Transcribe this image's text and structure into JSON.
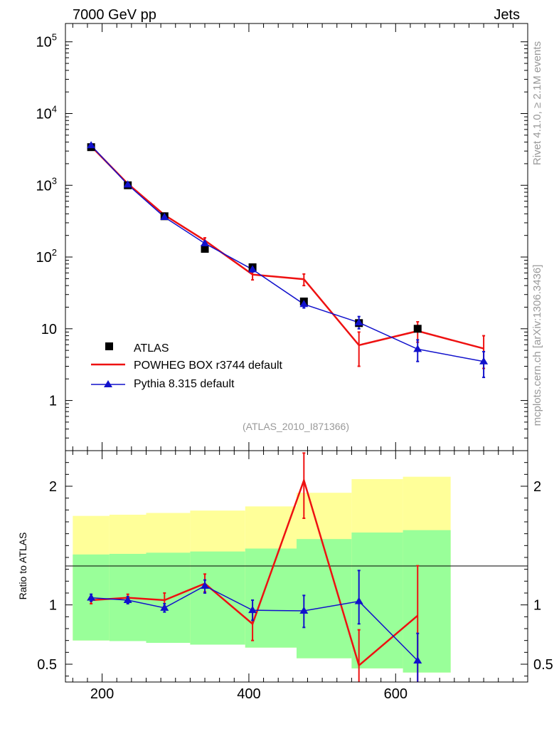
{
  "header": {
    "left": "7000 GeV pp",
    "right": "Jets"
  },
  "side_labels": {
    "rivet": "Rivet 4.1.0, ≥ 2.1M events",
    "source": "mcplots.cern.ch [arXiv:1306.3436]"
  },
  "analysis_tag": "(ATLAS_2010_I871366)",
  "legend": [
    {
      "label": "ATLAS",
      "marker": "square",
      "color": "#000000"
    },
    {
      "label": "POWHEG BOX r3744 default",
      "marker": "line",
      "color": "#ee1111"
    },
    {
      "label": "Pythia 8.315 default",
      "marker": "triangle",
      "color": "#1111cc"
    }
  ],
  "chart_data": [
    {
      "name": "main",
      "type": "line",
      "yscale": "log",
      "xlim": [
        150,
        780
      ],
      "ylim": [
        0.2,
        180000
      ],
      "xlabel": "",
      "ylabel": "",
      "y_tick_labels": [
        {
          "value": 1,
          "text": "1"
        },
        {
          "value": 10,
          "text": "10"
        },
        {
          "value": 100,
          "base": "10",
          "exp": "2"
        },
        {
          "value": 1000,
          "base": "10",
          "exp": "3"
        },
        {
          "value": 10000,
          "base": "10",
          "exp": "4"
        },
        {
          "value": 100000,
          "base": "10",
          "exp": "5"
        }
      ],
      "series": [
        {
          "name": "ATLAS",
          "style": "points",
          "color": "#000000",
          "x": [
            185,
            235,
            285,
            340,
            405,
            475,
            550,
            630
          ],
          "y": [
            3400,
            1000,
            370,
            130,
            72,
            24,
            12,
            10
          ]
        },
        {
          "name": "POWHEG BOX r3744 default",
          "style": "line",
          "color": "#ee1111",
          "x": [
            185,
            235,
            285,
            340,
            405,
            475,
            550,
            630,
            720
          ],
          "y": [
            3500,
            1050,
            385,
            170,
            57,
            49,
            5.9,
            9.3,
            5.3
          ],
          "err_lo": [
            3300,
            1000,
            360,
            150,
            48,
            40,
            3.0,
            6.5,
            2.8
          ],
          "err_hi": [
            3700,
            1100,
            410,
            185,
            66,
            58,
            9.0,
            12.5,
            8.0
          ]
        },
        {
          "name": "Pythia 8.315 default",
          "style": "line",
          "color": "#1111cc",
          "x": [
            185,
            235,
            285,
            340,
            405,
            475,
            550,
            630,
            720
          ],
          "y": [
            3600,
            1020,
            360,
            155,
            67,
            22,
            12.2,
            5.2,
            3.5
          ],
          "err_lo": [
            3500,
            990,
            345,
            145,
            62,
            19.5,
            10.0,
            3.5,
            2.1
          ],
          "err_hi": [
            3700,
            1050,
            375,
            165,
            72,
            25,
            14.8,
            7.0,
            4.8
          ]
        }
      ]
    },
    {
      "name": "ratio",
      "type": "line",
      "xlim": [
        150,
        780
      ],
      "ylim": [
        0.35,
        2.3
      ],
      "xlabel": "",
      "ylabel": "Ratio to ATLAS",
      "x_tick_labels": [
        200,
        400,
        600
      ],
      "y_tick_labels": [
        0.5,
        1,
        2
      ],
      "bands": {
        "edges": [
          160,
          210,
          260,
          320,
          395,
          465,
          540,
          610,
          675
        ],
        "yellow_lo": [
          0.7,
          0.695,
          0.68,
          0.665,
          0.64,
          0.55,
          0.465,
          0.43
        ],
        "yellow_hi": [
          1.75,
          1.76,
          1.775,
          1.795,
          1.83,
          1.945,
          2.06,
          2.08
        ],
        "green_lo": [
          0.7,
          0.695,
          0.68,
          0.665,
          0.64,
          0.55,
          0.465,
          0.43
        ],
        "green_hi": [
          1.425,
          1.43,
          1.44,
          1.45,
          1.475,
          1.555,
          1.61,
          1.63
        ],
        "yellow": "#ffff99",
        "green": "#99ff99"
      },
      "series": [
        {
          "name": "POWHEG BOX r3744 default",
          "color": "#ee1111",
          "x": [
            185,
            235,
            285,
            340,
            405,
            475,
            550,
            630
          ],
          "y": [
            1.04,
            1.06,
            1.04,
            1.18,
            0.84,
            2.05,
            0.49,
            0.91
          ],
          "err_lo": [
            1.01,
            1.03,
            0.99,
            1.11,
            0.7,
            1.73,
            0.3,
            0.3
          ],
          "err_hi": [
            1.07,
            1.09,
            1.1,
            1.26,
            0.97,
            2.28,
            0.79,
            1.33
          ]
        },
        {
          "name": "Pythia 8.315 default",
          "color": "#1111cc",
          "x": [
            185,
            235,
            285,
            340,
            405,
            475,
            550,
            630
          ],
          "y": [
            1.06,
            1.04,
            0.975,
            1.16,
            0.955,
            0.95,
            1.03,
            0.53
          ],
          "err_lo": [
            1.03,
            1.01,
            0.94,
            1.1,
            0.87,
            0.81,
            0.84,
            0.3
          ],
          "err_hi": [
            1.09,
            1.07,
            1.01,
            1.21,
            1.04,
            1.08,
            1.29,
            0.76
          ]
        }
      ]
    }
  ]
}
